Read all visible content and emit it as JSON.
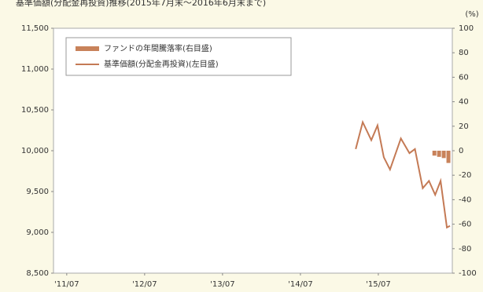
{
  "chart_data": {
    "type": "combo",
    "title": "基準価額(分配金再投資)推移(2015年7月末～2016年6月末まで)",
    "y2_label": "(%)",
    "xlim": [
      2011.33,
      2016.45
    ],
    "xticks": [
      {
        "value": 2011.5,
        "label": "'11/07"
      },
      {
        "value": 2012.5,
        "label": "'12/07"
      },
      {
        "value": 2013.5,
        "label": "'13/07"
      },
      {
        "value": 2014.5,
        "label": "'14/07"
      },
      {
        "value": 2015.5,
        "label": "'15/07"
      }
    ],
    "ylim": [
      8500,
      11500
    ],
    "yticks": [
      {
        "value": 8500,
        "label": "8,500"
      },
      {
        "value": 9000,
        "label": "9,000"
      },
      {
        "value": 9500,
        "label": "9,500"
      },
      {
        "value": 10000,
        "label": "10,000"
      },
      {
        "value": 10500,
        "label": "10,500"
      },
      {
        "value": 11000,
        "label": "11,000"
      },
      {
        "value": 11500,
        "label": "11,500"
      }
    ],
    "y2lim": [
      -100,
      100
    ],
    "y2ticks": [
      -100,
      -80,
      -60,
      -40,
      -20,
      0,
      20,
      40,
      60,
      80,
      100
    ],
    "series": [
      {
        "name": "ファンドの年間騰落率(右目盛)",
        "kind": "bar",
        "axis": "y2",
        "color": "#c8825a",
        "x": [
          2016.22,
          2016.28,
          2016.34,
          2016.4
        ],
        "values": [
          -4,
          -5,
          -6,
          -10
        ]
      },
      {
        "name": "基準価額(分配金再投資)(左目盛)",
        "kind": "line",
        "color": "#c47a55",
        "x": [
          2015.21,
          2015.3,
          2015.41,
          2015.49,
          2015.57,
          2015.65,
          2015.79,
          2015.9,
          2015.97,
          2016.07,
          2016.15,
          2016.23,
          2016.3,
          2016.38,
          2016.42
        ],
        "values": [
          10020,
          10350,
          10130,
          10310,
          9920,
          9770,
          10150,
          9970,
          10020,
          9540,
          9630,
          9460,
          9630,
          9060,
          9080
        ]
      }
    ]
  }
}
